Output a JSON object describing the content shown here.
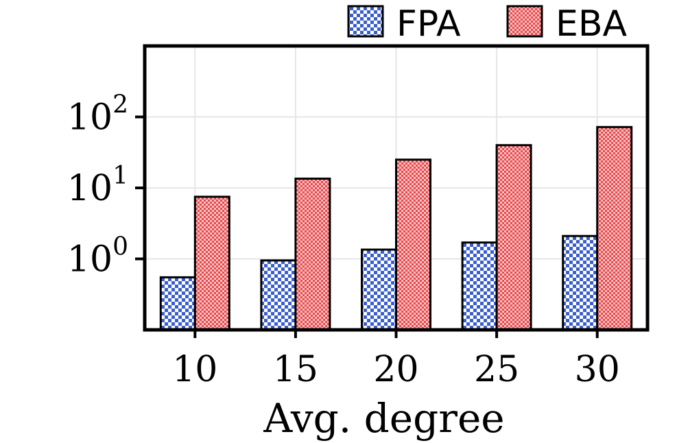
{
  "chart_data": {
    "type": "bar",
    "categories": [
      "10",
      "15",
      "20",
      "25",
      "30"
    ],
    "series": [
      {
        "name": "FPA",
        "values": [
          0.55,
          0.95,
          1.35,
          1.7,
          2.1
        ],
        "color": "#3a5fcd",
        "pattern": "checker"
      },
      {
        "name": "EBA",
        "values": [
          7.5,
          13.5,
          25,
          40,
          72
        ],
        "color": "#e8484b",
        "pattern": "checker"
      }
    ],
    "title": "",
    "xlabel": "Avg. degree",
    "ylabel": "",
    "yscale": "log",
    "ylim": [
      0.1,
      1000
    ],
    "yticks": [
      {
        "value": 1,
        "base": "10",
        "exp": "0"
      },
      {
        "value": 10,
        "base": "10",
        "exp": "1"
      },
      {
        "value": 100,
        "base": "10",
        "exp": "2"
      }
    ],
    "grid": true,
    "legend_position": "top-right"
  }
}
